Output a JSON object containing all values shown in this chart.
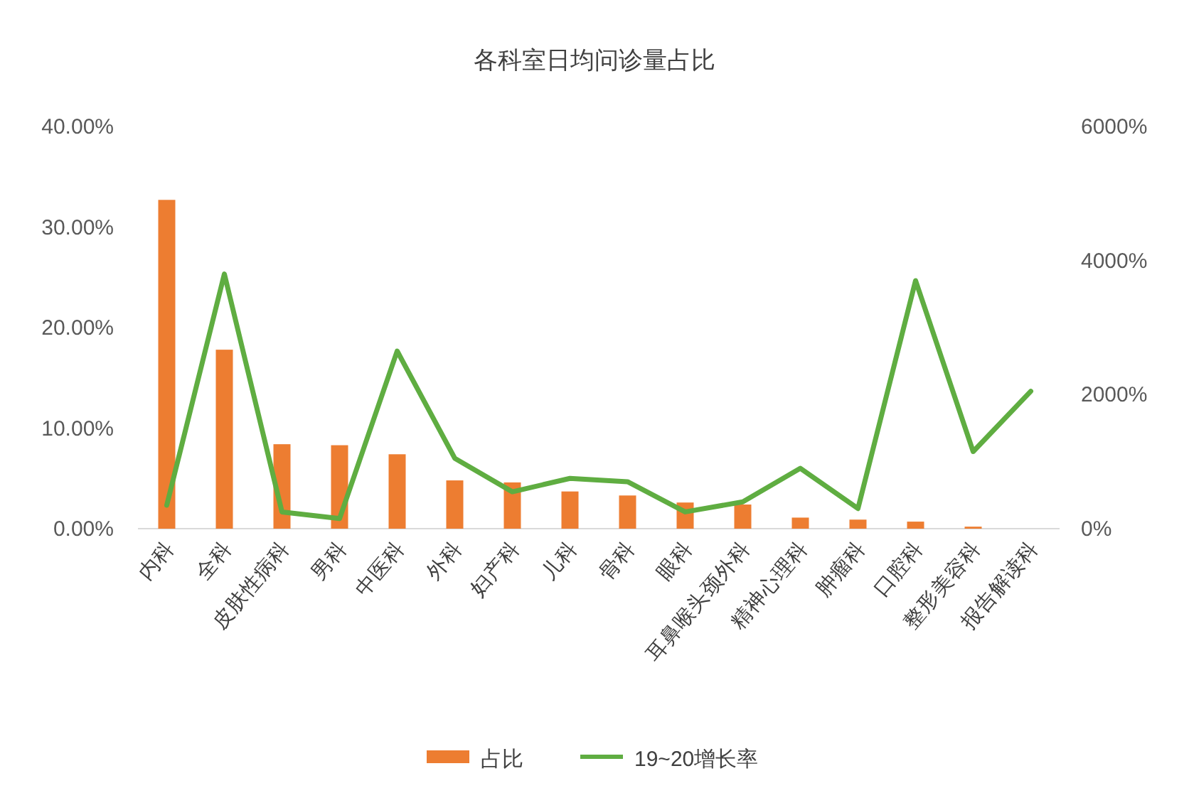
{
  "chart_data": {
    "type": "bar",
    "title": "各科室日均问诊量占比",
    "categories": [
      "内科",
      "全科",
      "皮肤性病科",
      "男科",
      "中医科",
      "外科",
      "妇产科",
      "儿科",
      "骨科",
      "眼科",
      "耳鼻喉头颈外科",
      "精神心理科",
      "肿瘤科",
      "口腔科",
      "整形美容科",
      "报告解读科"
    ],
    "series": [
      {
        "name": "占比",
        "color": "#ed7d31",
        "values": [
          32.7,
          17.8,
          8.4,
          8.3,
          7.4,
          4.8,
          4.6,
          3.7,
          3.3,
          2.6,
          2.4,
          1.1,
          0.9,
          0.7,
          0.2,
          0
        ]
      },
      {
        "name": "19~20增长率",
        "type": "line",
        "axis": "y2",
        "color": "#5fad41",
        "values": [
          350,
          3800,
          250,
          150,
          2650,
          1050,
          550,
          750,
          700,
          250,
          400,
          900,
          300,
          3700,
          1150,
          2050
        ]
      }
    ],
    "ylim": [
      0,
      40
    ],
    "yticks": [
      {
        "value": 0,
        "label": "0.00%"
      },
      {
        "value": 10,
        "label": "10.00%"
      },
      {
        "value": 20,
        "label": "20.00%"
      },
      {
        "value": 30,
        "label": "30.00%"
      },
      {
        "value": 40,
        "label": "40.00%"
      }
    ],
    "y2lim": [
      0,
      6000
    ],
    "y2ticks": [
      {
        "value": 0,
        "label": "0%"
      },
      {
        "value": 2000,
        "label": "2000%"
      },
      {
        "value": 4000,
        "label": "4000%"
      },
      {
        "value": 6000,
        "label": "6000%"
      }
    ],
    "legend": "bottom"
  }
}
